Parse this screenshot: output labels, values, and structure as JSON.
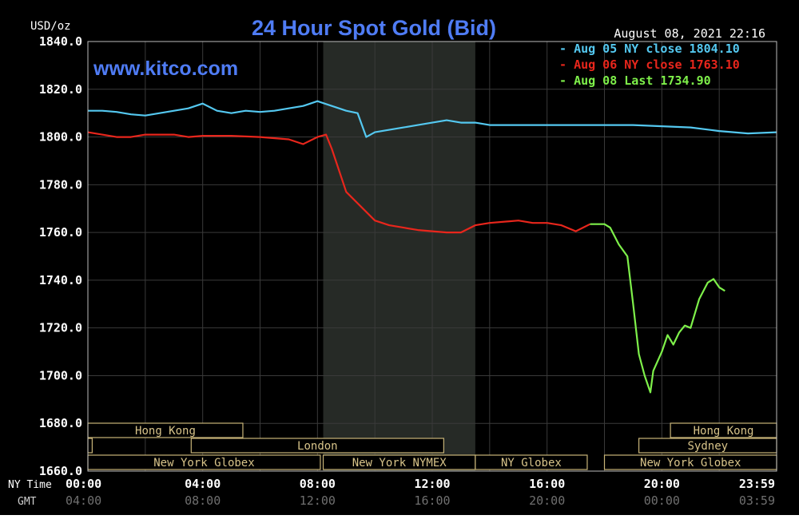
{
  "chart_data": {
    "type": "line",
    "title": "24 Hour Spot Gold (Bid)",
    "watermark": "www.kitco.com",
    "unit_label": "USD/oz",
    "timestamp": "August 08, 2021 22:16",
    "ylim": [
      1660,
      1840
    ],
    "xlim": [
      0,
      24
    ],
    "y_ticks": [
      "1840.0",
      "1820.0",
      "1800.0",
      "1780.0",
      "1760.0",
      "1740.0",
      "1720.0",
      "1700.0",
      "1680.0",
      "1660.0"
    ],
    "y_tick_values": [
      1840,
      1820,
      1800,
      1780,
      1760,
      1740,
      1720,
      1700,
      1680,
      1660
    ],
    "x_row_labels": {
      "ny": "NY Time",
      "gmt": "GMT"
    },
    "x_ticks_ny": [
      "00:00",
      "04:00",
      "08:00",
      "12:00",
      "16:00",
      "20:00",
      "23:59"
    ],
    "x_ticks_gmt": [
      "04:00",
      "08:00",
      "12:00",
      "16:00",
      "20:00",
      "00:00",
      "03:59"
    ],
    "x_tick_hours": [
      0,
      4,
      8,
      12,
      16,
      20,
      24
    ],
    "shaded_session": [
      8.2,
      13.5
    ],
    "grid": true,
    "background": "#000000",
    "legend": [
      {
        "text": "Aug 05 NY close 1804.10",
        "color": "#54c8f0"
      },
      {
        "text": "Aug 06 NY close 1763.10",
        "color": "#e8261c"
      },
      {
        "text": "Aug 08 Last 1734.90",
        "color": "#7ef04a"
      }
    ],
    "series": [
      {
        "color": "#54c8f0",
        "x": [
          0,
          0.5,
          1,
          1.5,
          2,
          2.5,
          3,
          3.5,
          4,
          4.5,
          5,
          5.5,
          6,
          6.5,
          7,
          7.5,
          8,
          8.5,
          9,
          9.4,
          9.7,
          10,
          10.5,
          11,
          11.5,
          12,
          12.5,
          13,
          13.5,
          14,
          15,
          16,
          17,
          18,
          19,
          20,
          21,
          22,
          23,
          24
        ],
        "values": [
          1811,
          1811,
          1810.5,
          1809.5,
          1809,
          1810,
          1811,
          1812,
          1814,
          1811,
          1810,
          1811,
          1810.5,
          1811,
          1812,
          1813,
          1815,
          1813,
          1811,
          1810,
          1800,
          1802,
          1803,
          1804,
          1805,
          1806,
          1807,
          1806,
          1806,
          1805,
          1805,
          1805,
          1805,
          1805,
          1805,
          1804.5,
          1804,
          1802.5,
          1801.5,
          1802
        ]
      },
      {
        "color": "#e8261c",
        "x": [
          0,
          0.5,
          1,
          1.5,
          2,
          3,
          3.5,
          4,
          5,
          6,
          7,
          7.5,
          8,
          8.3,
          8.5,
          9,
          9.5,
          10,
          10.5,
          11,
          11.5,
          12,
          12.5,
          13,
          13.5,
          14,
          15,
          15.5,
          16,
          16.5,
          17,
          17.5
        ],
        "values": [
          1802,
          1801,
          1800,
          1800,
          1801,
          1801,
          1800,
          1800.5,
          1800.5,
          1800,
          1799,
          1797,
          1800,
          1801,
          1795,
          1777,
          1771,
          1765,
          1763,
          1762,
          1761,
          1760.5,
          1760,
          1760,
          1763,
          1764,
          1765,
          1764,
          1764,
          1763,
          1760.5,
          1763.5
        ]
      },
      {
        "color": "#7ef04a",
        "x": [
          17.5,
          18,
          18.2,
          18.5,
          18.8,
          19,
          19.2,
          19.4,
          19.6,
          19.7,
          20,
          20.2,
          20.4,
          20.6,
          20.8,
          21,
          21.3,
          21.6,
          21.8,
          22,
          22.2
        ],
        "values": [
          1763.5,
          1763.5,
          1762,
          1755,
          1750,
          1730,
          1709,
          1700,
          1693,
          1702,
          1710,
          1717,
          1713,
          1718,
          1721,
          1720,
          1732,
          1739,
          1740.5,
          1737,
          1735.5
        ]
      }
    ],
    "session_bars": [
      {
        "label": "Hong Kong",
        "from": 0,
        "to": 5.4,
        "row": 0
      },
      {
        "label": "",
        "from": 0,
        "to": 0.15,
        "row": 1
      },
      {
        "label": "London",
        "from": 3.6,
        "to": 12.4,
        "row": 1
      },
      {
        "label": "New York Globex",
        "from": 0,
        "to": 8.1,
        "row": 2
      },
      {
        "label": "New York NYMEX",
        "from": 8.2,
        "to": 13.5,
        "row": 2
      },
      {
        "label": "NY Globex",
        "from": 13.5,
        "to": 17.4,
        "row": 2
      },
      {
        "label": "Hong Kong",
        "from": 20.3,
        "to": 24,
        "row": 0
      },
      {
        "label": "Sydney",
        "from": 19.2,
        "to": 24,
        "row": 1
      },
      {
        "label": "New York Globex",
        "from": 18.0,
        "to": 24,
        "row": 2
      }
    ]
  }
}
